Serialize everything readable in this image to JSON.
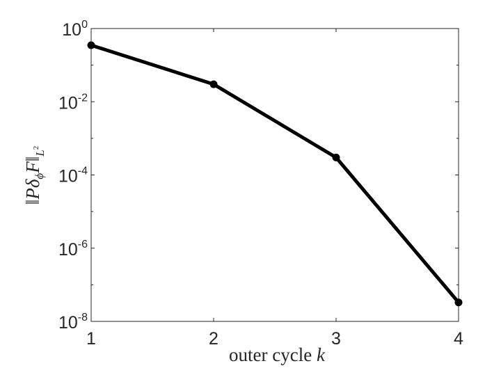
{
  "chart_data": {
    "type": "line",
    "title": "",
    "xlabel": {
      "text": "outer cycle ",
      "var": "k"
    },
    "ylabel": {
      "open": "‖",
      "P": "P",
      "delta": "δ",
      "phi": "ϕ",
      "F": "F",
      "close": "‖",
      "sub": "L",
      "subsup": "2"
    },
    "x": [
      1,
      2,
      3,
      4
    ],
    "y": [
      0.35,
      0.03,
      0.0003,
      3.3e-08
    ],
    "xlim": [
      1,
      4
    ],
    "ylim": [
      1e-08,
      1
    ],
    "yscale": "log",
    "xticks": [
      "1",
      "2",
      "3",
      "4"
    ],
    "yticks": [
      {
        "base": "10",
        "exp": "0",
        "value": 1
      },
      {
        "base": "10",
        "exp": "-2",
        "value": 0.01
      },
      {
        "base": "10",
        "exp": "-4",
        "value": 0.0001
      },
      {
        "base": "10",
        "exp": "-6",
        "value": 1e-06
      },
      {
        "base": "10",
        "exp": "-8",
        "value": 1e-08
      }
    ],
    "grid": false,
    "legend": "none",
    "line_color": "#000000",
    "axis_color": "#262626"
  }
}
